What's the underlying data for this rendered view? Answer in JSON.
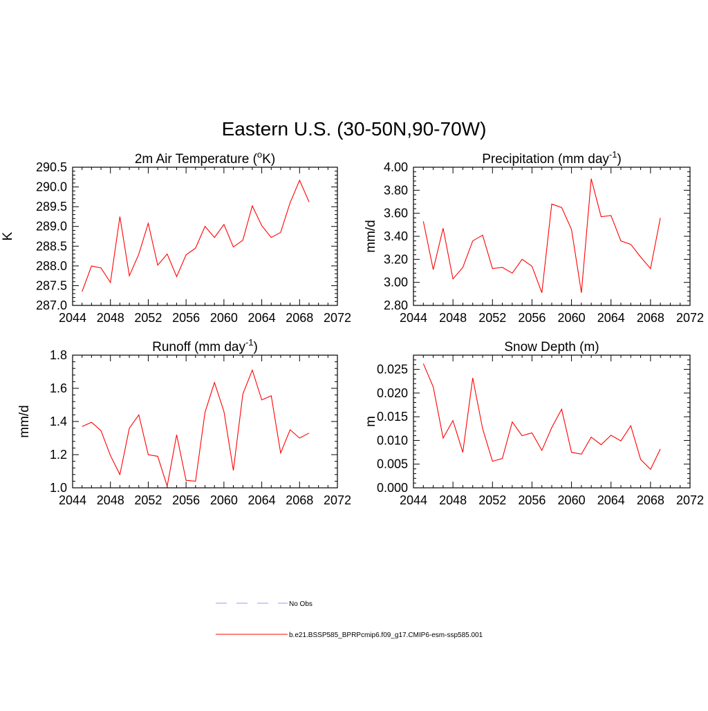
{
  "figure": {
    "title": "Eastern U.S. (30-50N,90-70W)"
  },
  "legend": {
    "entries": [
      {
        "label": "No Obs",
        "color": "#9999ee",
        "dashed": true
      },
      {
        "label": "b.e21.BSSP585_BPRPcmip6.f09_g17.CMIP6-esm-ssp585.001",
        "color": "#ff0000",
        "dashed": false
      }
    ]
  },
  "chart_data": [
    {
      "type": "line",
      "title": "2m Air Temperature (oK)",
      "title_parts": {
        "before": "2m Air Temperature (",
        "sup": "o",
        "after": "K)"
      },
      "ylabel": "K",
      "xlim": [
        2044,
        2072
      ],
      "ylim": [
        287.0,
        290.5
      ],
      "x_ticks": [
        "2044",
        "2048",
        "2052",
        "2056",
        "2060",
        "2064",
        "2068",
        "2072"
      ],
      "y_ticks": [
        "287.0",
        "287.5",
        "288.0",
        "288.5",
        "289.0",
        "289.5",
        "290.0",
        "290.5"
      ],
      "y_tick_values": [
        287.0,
        287.5,
        288.0,
        288.5,
        289.0,
        289.5,
        290.0,
        290.5
      ],
      "color": "#ff0000",
      "x": [
        2045,
        2046,
        2047,
        2048,
        2049,
        2050,
        2051,
        2052,
        2053,
        2054,
        2055,
        2056,
        2057,
        2058,
        2059,
        2060,
        2061,
        2062,
        2063,
        2064,
        2065,
        2066,
        2067,
        2068,
        2069
      ],
      "y": [
        287.35,
        288.0,
        287.95,
        287.58,
        289.25,
        287.75,
        288.3,
        289.08,
        288.02,
        288.3,
        287.73,
        288.28,
        288.45,
        289.0,
        288.72,
        289.05,
        288.48,
        288.65,
        289.52,
        289.02,
        288.72,
        288.85,
        289.6,
        290.17,
        289.62
      ]
    },
    {
      "type": "line",
      "title": "Precipitation (mm day-1)",
      "title_parts": {
        "before": "Precipitation (mm day",
        "sup": "-1",
        "after": ")"
      },
      "ylabel": "mm/d",
      "xlim": [
        2044,
        2072
      ],
      "ylim": [
        2.8,
        4.0
      ],
      "x_ticks": [
        "2044",
        "2048",
        "2052",
        "2056",
        "2060",
        "2064",
        "2068",
        "2072"
      ],
      "y_ticks": [
        "2.80",
        "3.00",
        "3.20",
        "3.40",
        "3.60",
        "3.80",
        "4.00"
      ],
      "y_tick_values": [
        2.8,
        3.0,
        3.2,
        3.4,
        3.6,
        3.8,
        4.0
      ],
      "color": "#ff0000",
      "x": [
        2045,
        2046,
        2047,
        2048,
        2049,
        2050,
        2051,
        2052,
        2053,
        2054,
        2055,
        2056,
        2057,
        2058,
        2059,
        2060,
        2061,
        2062,
        2063,
        2064,
        2065,
        2066,
        2067,
        2068,
        2069
      ],
      "y": [
        3.53,
        3.11,
        3.47,
        3.03,
        3.13,
        3.36,
        3.41,
        3.12,
        3.13,
        3.08,
        3.2,
        3.14,
        2.91,
        3.68,
        3.65,
        3.46,
        2.91,
        3.9,
        3.57,
        3.58,
        3.36,
        3.33,
        3.22,
        3.12,
        3.56
      ]
    },
    {
      "type": "line",
      "title": "Runoff (mm day-1)",
      "title_parts": {
        "before": "Runoff (mm day",
        "sup": "-1",
        "after": ")"
      },
      "ylabel": "mm/d",
      "xlim": [
        2044,
        2072
      ],
      "ylim": [
        1.0,
        1.8
      ],
      "x_ticks": [
        "2044",
        "2048",
        "2052",
        "2056",
        "2060",
        "2064",
        "2068",
        "2072"
      ],
      "y_ticks": [
        "1.0",
        "1.2",
        "1.4",
        "1.6",
        "1.8"
      ],
      "y_tick_values": [
        1.0,
        1.2,
        1.4,
        1.6,
        1.8
      ],
      "color": "#ff0000",
      "x": [
        2045,
        2046,
        2047,
        2048,
        2049,
        2050,
        2051,
        2052,
        2053,
        2054,
        2055,
        2056,
        2057,
        2058,
        2059,
        2060,
        2061,
        2062,
        2063,
        2064,
        2065,
        2066,
        2067,
        2068,
        2069
      ],
      "y": [
        1.37,
        1.395,
        1.345,
        1.195,
        1.08,
        1.36,
        1.44,
        1.2,
        1.19,
        1.01,
        1.32,
        1.045,
        1.04,
        1.455,
        1.635,
        1.46,
        1.105,
        1.565,
        1.71,
        1.53,
        1.555,
        1.21,
        1.35,
        1.3,
        1.33
      ]
    },
    {
      "type": "line",
      "title": "Snow Depth (m)",
      "title_parts": {
        "before": "Snow Depth (m)",
        "sup": "",
        "after": ""
      },
      "ylabel": "m",
      "xlim": [
        2044,
        2072
      ],
      "ylim": [
        0.0,
        0.028
      ],
      "x_ticks": [
        "2044",
        "2048",
        "2052",
        "2056",
        "2060",
        "2064",
        "2068",
        "2072"
      ],
      "y_ticks": [
        "0.000",
        "0.005",
        "0.010",
        "0.015",
        "0.020",
        "0.025"
      ],
      "y_tick_values": [
        0.0,
        0.005,
        0.01,
        0.015,
        0.02,
        0.025
      ],
      "color": "#ff0000",
      "x": [
        2045,
        2046,
        2047,
        2048,
        2049,
        2050,
        2051,
        2052,
        2053,
        2054,
        2055,
        2056,
        2057,
        2058,
        2059,
        2060,
        2061,
        2062,
        2063,
        2064,
        2065,
        2066,
        2067,
        2068,
        2069
      ],
      "y": [
        0.0262,
        0.0213,
        0.0105,
        0.0142,
        0.0075,
        0.0232,
        0.0125,
        0.0056,
        0.0062,
        0.0139,
        0.011,
        0.0116,
        0.0079,
        0.0127,
        0.0166,
        0.0075,
        0.0071,
        0.0107,
        0.0091,
        0.0111,
        0.0099,
        0.0131,
        0.006,
        0.0039,
        0.0082
      ]
    }
  ]
}
